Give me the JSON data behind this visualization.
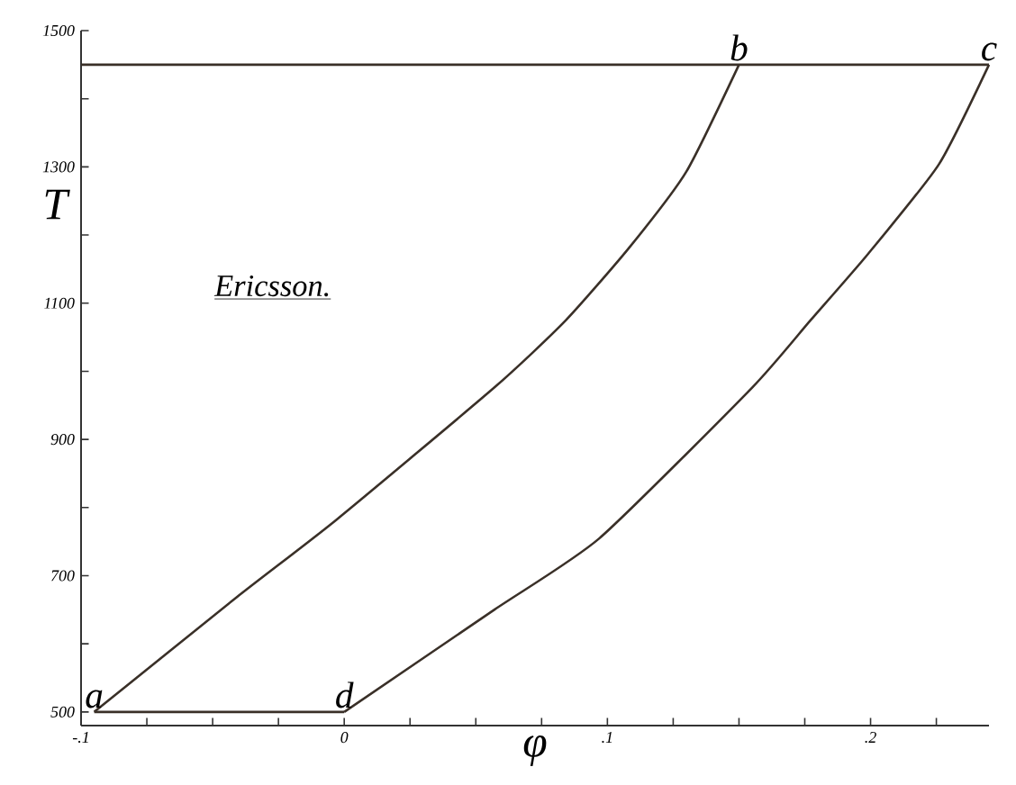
{
  "chart_data": {
    "type": "line",
    "xlabel": "φ",
    "ylabel": "T",
    "xlim": [
      -0.1,
      0.245
    ],
    "ylim": [
      480,
      1500
    ],
    "xticks": [
      {
        "value": -0.1,
        "label": "-.1"
      },
      {
        "value": -0.075,
        "label": null
      },
      {
        "value": -0.05,
        "label": null
      },
      {
        "value": -0.025,
        "label": null
      },
      {
        "value": 0,
        "label": "0"
      },
      {
        "value": 0.025,
        "label": null
      },
      {
        "value": 0.05,
        "label": null
      },
      {
        "value": 0.075,
        "label": null
      },
      {
        "value": 0.1,
        "label": ".1"
      },
      {
        "value": 0.125,
        "label": null
      },
      {
        "value": 0.15,
        "label": null
      },
      {
        "value": 0.175,
        "label": null
      },
      {
        "value": 0.2,
        "label": ".2"
      },
      {
        "value": 0.225,
        "label": null
      }
    ],
    "yticks": [
      500,
      {
        "value": 600,
        "label": null
      },
      700,
      {
        "value": 800,
        "label": null
      },
      900,
      {
        "value": 1000,
        "label": null
      },
      1100,
      {
        "value": 1200,
        "label": null
      },
      1300,
      {
        "value": 1400,
        "label": null
      },
      1500
    ],
    "series": [
      {
        "color": "#3a3028",
        "x": [
          -0.095,
          -0.041,
          -0.003,
          0.057,
          0.084,
          0.108,
          0.13,
          0.15
        ],
        "values": [
          500,
          668,
          782,
          976,
          1074,
          1180,
          1293,
          1450
        ]
      },
      {
        "color": "#3a3028",
        "x": [
          0,
          0.057,
          0.097,
          0.155,
          0.177,
          0.199,
          0.226,
          0.245
        ],
        "values": [
          500,
          650,
          755,
          976,
          1074,
          1172,
          1304,
          1450
        ]
      },
      {
        "color": "#3a3028",
        "x": [
          -0.1,
          0.245
        ],
        "values": [
          1450,
          1450
        ]
      },
      {
        "color": "#3a3028",
        "x": [
          -0.095,
          0
        ],
        "values": [
          500,
          500
        ]
      }
    ],
    "annotations": [
      "Ericsson.",
      {
        "text": "a",
        "x": -0.095,
        "y": 500
      },
      {
        "text": "b",
        "x": 0.15,
        "y": 1450
      },
      {
        "text": "c",
        "x": 0.245,
        "y": 1450
      },
      {
        "text": "d",
        "x": 0,
        "y": 500
      }
    ]
  }
}
